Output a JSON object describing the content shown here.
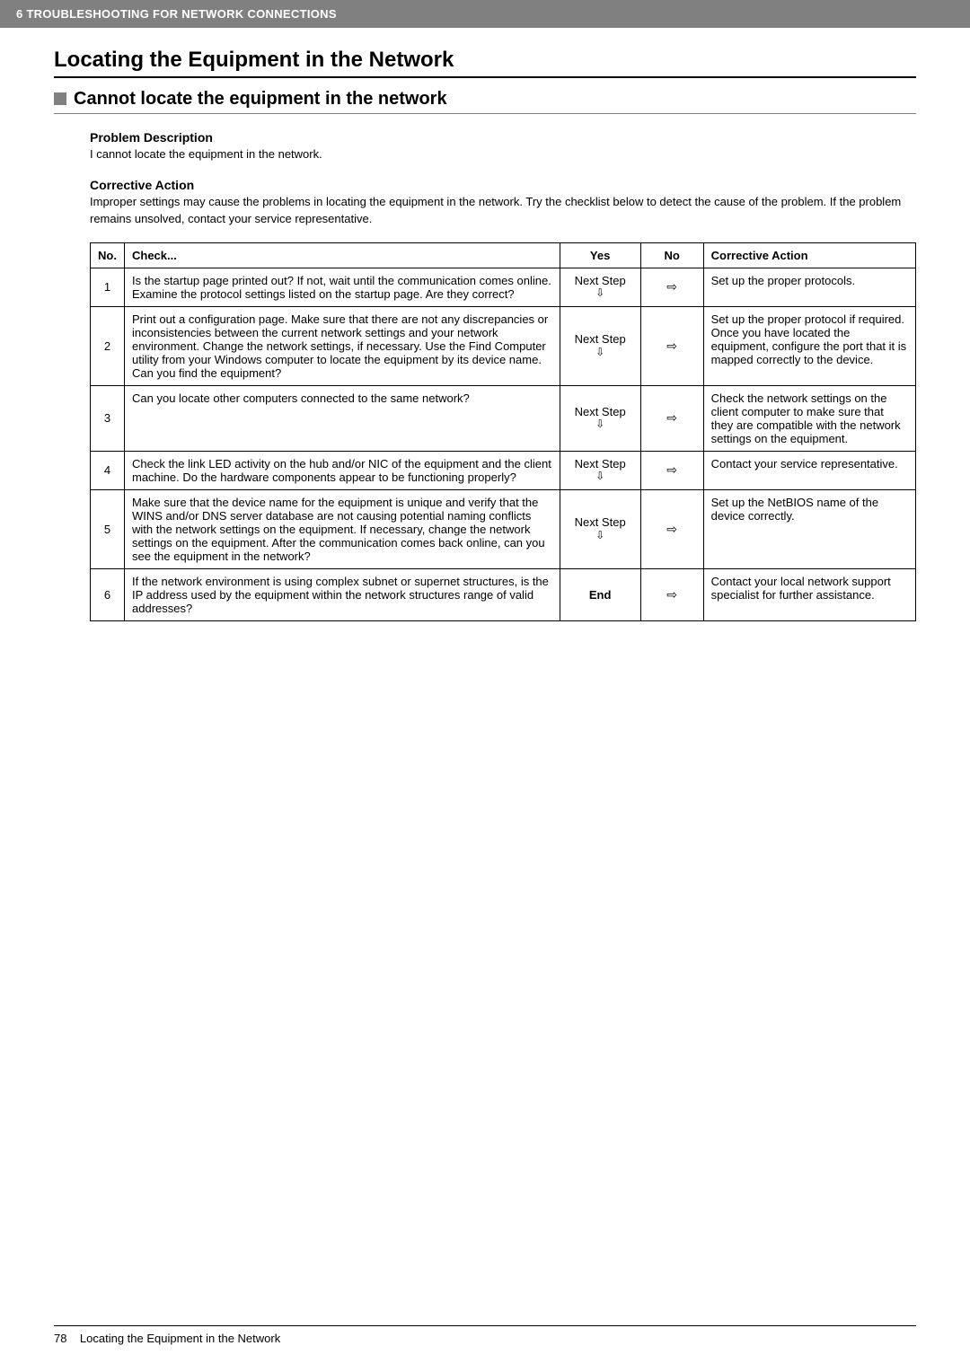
{
  "header": {
    "chapter": "6 TROUBLESHOOTING FOR NETWORK CONNECTIONS"
  },
  "h1": "Locating the Equipment in the Network",
  "h2": "Cannot locate the equipment in the network",
  "problem_desc_heading": "Problem Description",
  "problem_desc_body": "I cannot locate the equipment in the network.",
  "corrective_heading": "Corrective Action",
  "corrective_body": "Improper settings may cause the problems in locating the equipment in the network. Try the checklist below to detect the cause of the problem. If the problem remains unsolved, contact your service representative.",
  "table": {
    "headers": {
      "no": "No.",
      "check": "Check...",
      "yes": "Yes",
      "no_col": "No",
      "action": "Corrective Action"
    },
    "next_step_label": "Next Step",
    "end_label": "End",
    "arrow_down": "⇩",
    "arrow_right": "⇨",
    "rows": [
      {
        "n": "1",
        "check": "Is the startup page printed out? If not, wait until the communication comes online. Examine the protocol settings listed on the startup page. Are they correct?",
        "action": "Set up the proper protocols."
      },
      {
        "n": "2",
        "check": "Print out a configuration page. Make sure that there are not any discrepancies or inconsistencies between the current network settings and your network environment. Change the network settings, if necessary. Use the Find Computer utility from your Windows computer to locate the equipment by its device name. Can you find the equipment?",
        "action": "Set up the proper protocol if required.\nOnce you have located the equipment, configure the port that it is mapped correctly to the device."
      },
      {
        "n": "3",
        "check": "Can you locate other computers connected to the same network?",
        "action": "Check the network settings on the client computer to make sure that they are compatible with the network settings on the equipment."
      },
      {
        "n": "4",
        "check": "Check the link LED activity on the hub and/or NIC of the equipment and the client machine. Do the hardware components appear to be functioning properly?",
        "action": "Contact your service representative."
      },
      {
        "n": "5",
        "check": "Make sure that the device name for the equipment is unique and verify that the WINS and/or DNS server database are not causing potential naming conflicts with the network settings on the equipment. If necessary, change the network settings on the equipment. After the communication comes back online, can you see the equipment in the network?",
        "action": "Set up the NetBIOS name of the device correctly."
      },
      {
        "n": "6",
        "check": "If the network environment is using complex subnet or supernet structures, is the IP address used by the equipment within the network structures range of valid addresses?",
        "action": "Contact your local network support specialist for further assistance."
      }
    ]
  },
  "footer": {
    "page_num": "78",
    "title": "Locating the Equipment in the Network"
  }
}
